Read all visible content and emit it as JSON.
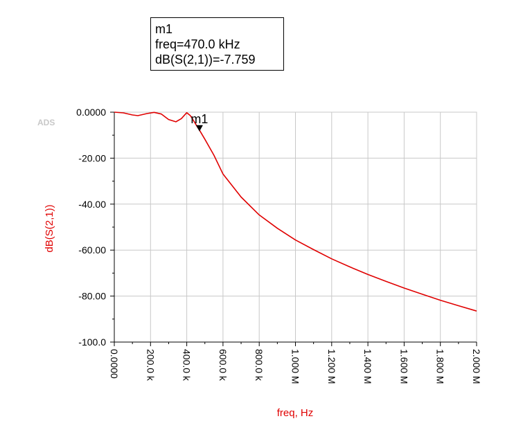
{
  "watermark": "ADS",
  "marker_box": {
    "name": "m1",
    "freq_line": "freq=470.0 kHz",
    "value_line": "dB(S(2,1))=-7.759"
  },
  "colors": {
    "trace": "#e00000",
    "axis_label": "#e00000",
    "grid": "#c8c8c8",
    "frame": "#000000"
  },
  "chart_data": {
    "type": "line",
    "xlabel": "freq, Hz",
    "ylabel": "dB(S(2,1))",
    "xlim": [
      0,
      2000000
    ],
    "ylim": [
      -100,
      0
    ],
    "grid": true,
    "x_ticks": [
      0,
      200000,
      400000,
      600000,
      800000,
      1000000,
      1200000,
      1400000,
      1600000,
      1800000,
      2000000
    ],
    "x_tick_labels": [
      "0.0000",
      "200.0 k",
      "400.0 k",
      "600.0 k",
      "800.0 k",
      "1.000 M",
      "1.200 M",
      "1.400 M",
      "1.600 M",
      "1.800 M",
      "2.000 M"
    ],
    "y_ticks": [
      0,
      -20,
      -40,
      -60,
      -80,
      -100
    ],
    "y_tick_labels": [
      "0.0000",
      "-20.00",
      "-40.00",
      "-60.00",
      "-80.00",
      "-100.0"
    ],
    "series": [
      {
        "x": [
          0,
          50000,
          100000,
          130000,
          180000,
          220000,
          260000,
          300000,
          340000,
          370000,
          400000,
          420000,
          440000,
          460000,
          470000,
          500000,
          550000,
          600000,
          700000,
          800000,
          900000,
          1000000,
          1100000,
          1200000,
          1300000,
          1400000,
          1500000,
          1600000,
          1700000,
          1800000,
          1900000,
          2000000
        ],
        "y": [
          0,
          -0.3,
          -1.2,
          -1.5,
          -0.6,
          -0.1,
          -0.8,
          -3.2,
          -4.2,
          -2.8,
          -0.2,
          -1.5,
          -4.0,
          -6.6,
          -7.759,
          -11.8,
          -18.7,
          -26.9,
          -36.9,
          -44.7,
          -50.5,
          -55.6,
          -59.8,
          -63.8,
          -67.3,
          -70.6,
          -73.6,
          -76.5,
          -79.2,
          -81.8,
          -84.2,
          -86.5
        ]
      }
    ],
    "markers": [
      {
        "label": "m1",
        "x": 470000,
        "y": -7.759
      }
    ]
  }
}
